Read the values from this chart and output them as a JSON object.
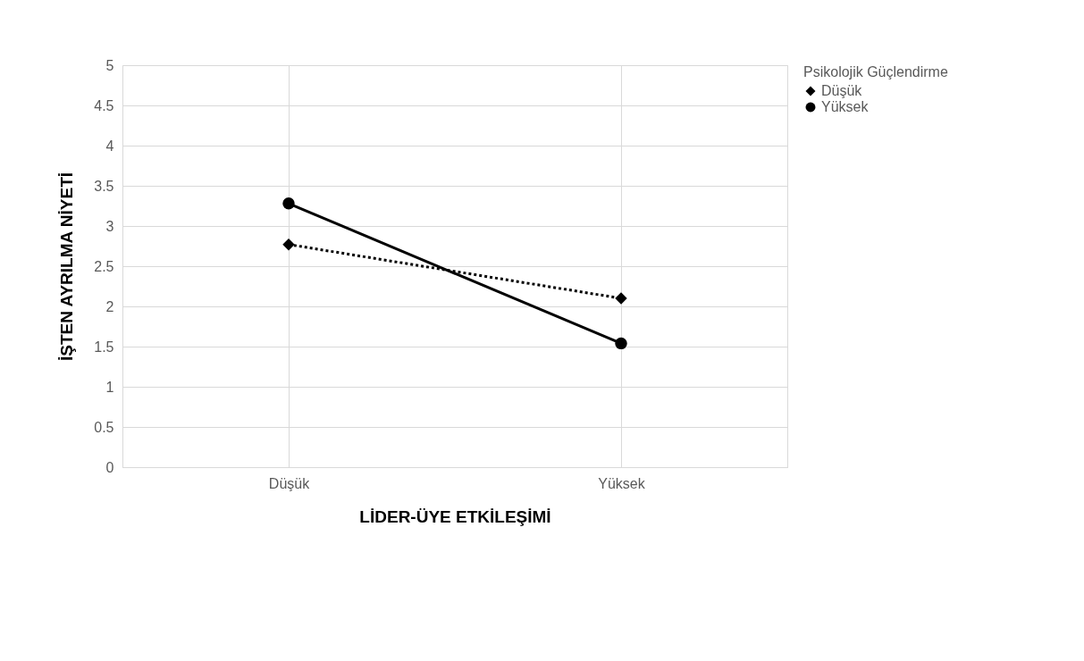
{
  "chart_data": {
    "type": "line",
    "xlabel": "LİDER-ÜYE ETKİLEŞİMİ",
    "ylabel": "İŞTEN AYRILMA NİYETİ",
    "legend_title": "Psikolojik Güçlendirme",
    "categories": [
      "Düşük",
      "Yüksek"
    ],
    "series": [
      {
        "name": "Düşük",
        "color": "#000000",
        "values": [
          2.77,
          2.1
        ],
        "line_style": "dotted",
        "marker": "diamond"
      },
      {
        "name": "Yüksek",
        "color": "#000000",
        "values": [
          3.28,
          1.54
        ],
        "line_style": "solid",
        "marker": "circle"
      }
    ],
    "ylim": [
      0,
      5
    ],
    "yticks": [
      0,
      0.5,
      1,
      1.5,
      2,
      2.5,
      3,
      3.5,
      4,
      4.5,
      5
    ],
    "grid": true,
    "legend": "right"
  }
}
